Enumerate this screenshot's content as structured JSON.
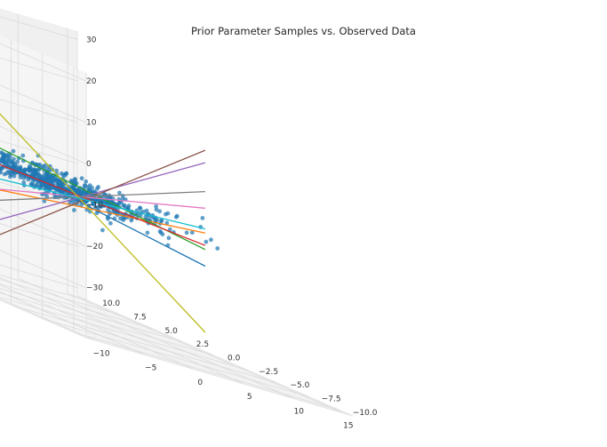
{
  "chart_data": {
    "type": "scatter",
    "title": "Prior Parameter Samples vs. Observed Data",
    "xlabel": "",
    "ylabel": "",
    "zlabel": "",
    "x_ticks": [
      -10,
      -5,
      0,
      5,
      10,
      15
    ],
    "y_ticks": [
      -10.0,
      -7.5,
      -5.0,
      -2.5,
      0.0,
      2.5,
      5.0,
      7.5,
      10.0
    ],
    "z_ticks": [
      -30,
      -20,
      -10,
      0,
      10,
      20,
      30
    ],
    "x_tick_labels": [
      "−10",
      "−5",
      "0",
      "5",
      "10",
      "15"
    ],
    "y_tick_labels": [
      "−10.0",
      "−7.5",
      "−5.0",
      "−2.5",
      "0.0",
      "2.5",
      "5.0",
      "7.5",
      "10.0"
    ],
    "z_tick_labels": [
      "−30",
      "−20",
      "−10",
      "0",
      "10",
      "20",
      "30"
    ],
    "xlim": [
      -11,
      16
    ],
    "ylim": [
      -11,
      11
    ],
    "zlim": [
      -32,
      32
    ],
    "grid": true,
    "observed_color": "#1f77b4",
    "prior_lines": [
      {
        "color": "#1f77b4",
        "z_start": 2,
        "z_end": -11
      },
      {
        "color": "#ff7f0e",
        "z_start": -8,
        "z_end": -3
      },
      {
        "color": "#2ca02c",
        "z_start": 5,
        "z_end": -7
      },
      {
        "color": "#d62728",
        "z_start": 0,
        "z_end": -6
      },
      {
        "color": "#9467bd",
        "z_start": -20,
        "z_end": 14
      },
      {
        "color": "#8c564b",
        "z_start": -25,
        "z_end": 17
      },
      {
        "color": "#e377c2",
        "z_start": -9,
        "z_end": 3
      },
      {
        "color": "#7f7f7f",
        "z_start": -13,
        "z_end": 7
      },
      {
        "color": "#bcbd22",
        "z_start": 19,
        "z_end": -27
      },
      {
        "color": "#17becf",
        "z_start": -5,
        "z_end": -2
      }
    ],
    "legend": "none"
  }
}
